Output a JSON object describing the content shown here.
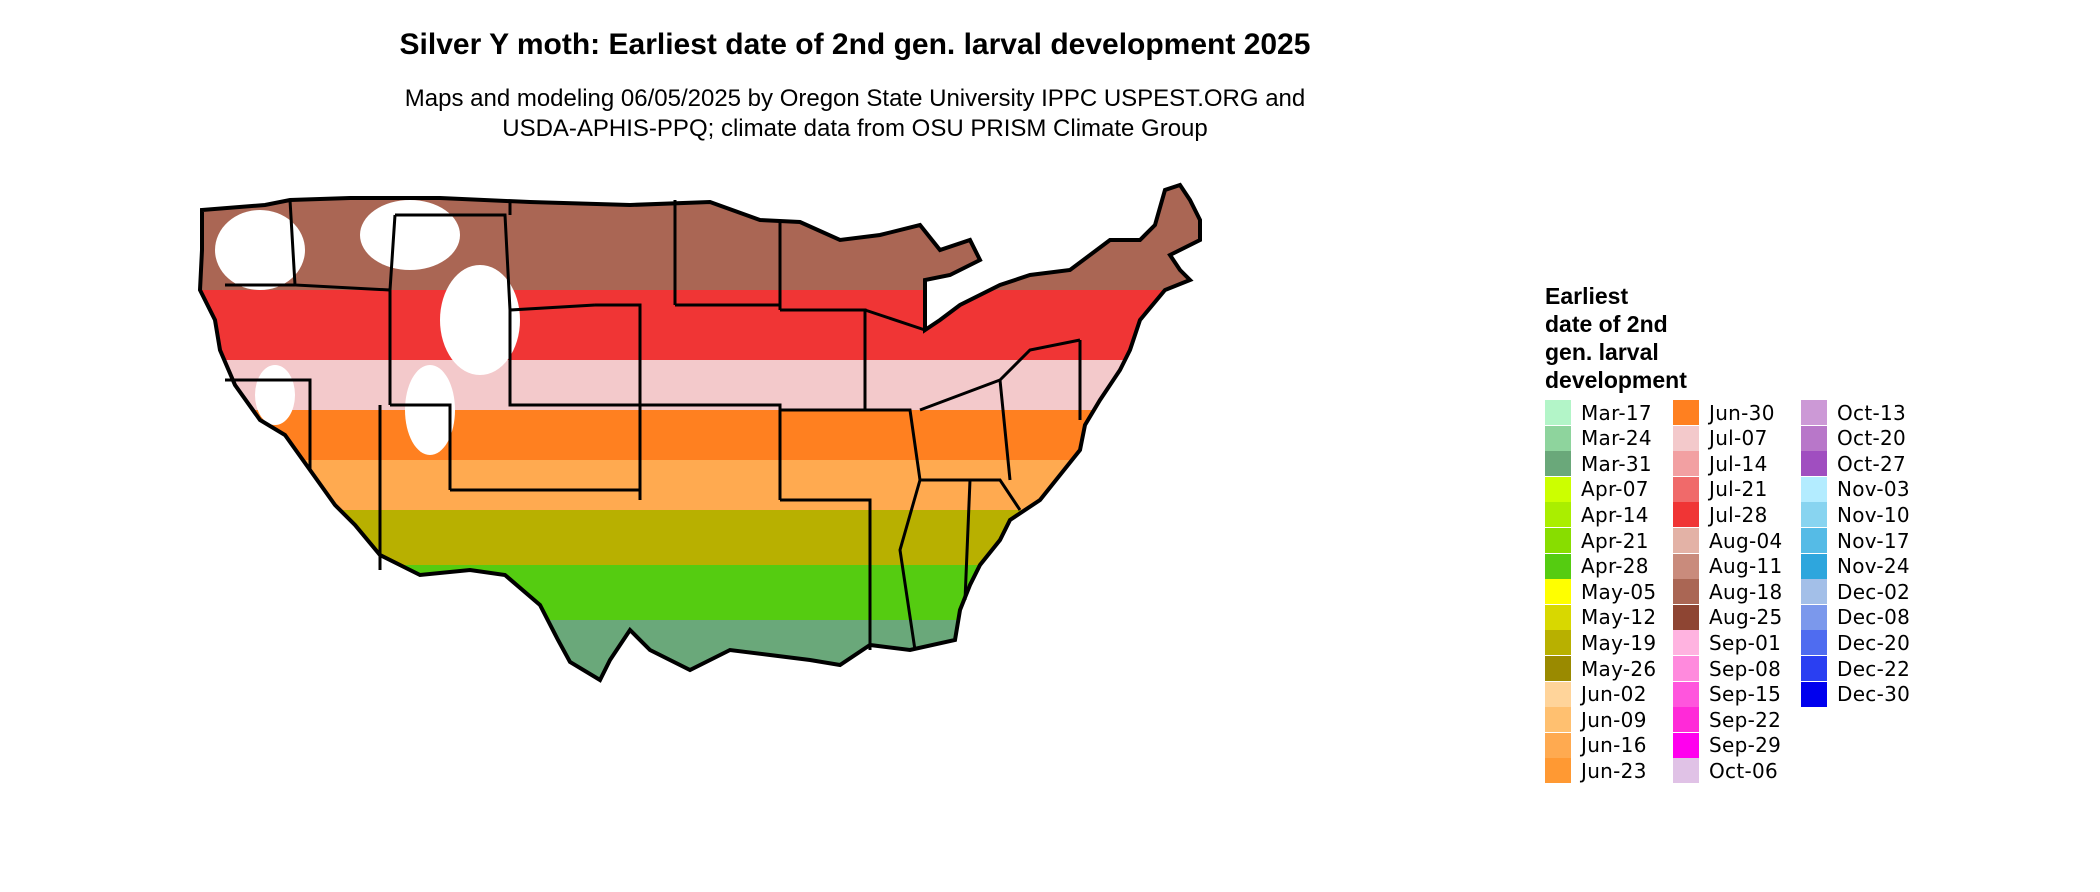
{
  "title": "Silver Y moth: Earliest date of 2nd gen. larval development 2025",
  "subtitle": "Maps and modeling 06/05/2025 by Oregon State University IPPC USPEST.ORG and\nUSDA-APHIS-PPQ; climate data from OSU PRISM Climate Group",
  "legend": {
    "title": "Earliest\ndate of 2nd\ngen. larval\ndevelopment",
    "items": [
      {
        "label": "Mar-17",
        "color": "#b3f5c8"
      },
      {
        "label": "Mar-24",
        "color": "#8ed49d"
      },
      {
        "label": "Mar-31",
        "color": "#6aa87a"
      },
      {
        "label": "Apr-07",
        "color": "#ccff00"
      },
      {
        "label": "Apr-14",
        "color": "#aaee00"
      },
      {
        "label": "Apr-21",
        "color": "#88dd00"
      },
      {
        "label": "Apr-28",
        "color": "#55cc11"
      },
      {
        "label": "May-05",
        "color": "#ffff00"
      },
      {
        "label": "May-12",
        "color": "#d8d800"
      },
      {
        "label": "May-19",
        "color": "#b8b000"
      },
      {
        "label": "May-26",
        "color": "#9a8a00"
      },
      {
        "label": "Jun-02",
        "color": "#ffd49a"
      },
      {
        "label": "Jun-09",
        "color": "#ffc070"
      },
      {
        "label": "Jun-16",
        "color": "#ffaa50"
      },
      {
        "label": "Jun-23",
        "color": "#ff9933"
      },
      {
        "label": "Jun-30",
        "color": "#ff8020"
      },
      {
        "label": "Jul-07",
        "color": "#f3c9cb"
      },
      {
        "label": "Jul-14",
        "color": "#f2a0a2"
      },
      {
        "label": "Jul-21",
        "color": "#f06a6a"
      },
      {
        "label": "Jul-28",
        "color": "#f03535"
      },
      {
        "label": "Aug-04",
        "color": "#e3b2a6"
      },
      {
        "label": "Aug-11",
        "color": "#c98b7c"
      },
      {
        "label": "Aug-18",
        "color": "#aa6654"
      },
      {
        "label": "Aug-25",
        "color": "#8e4533"
      },
      {
        "label": "Sep-01",
        "color": "#ffb3e0"
      },
      {
        "label": "Sep-08",
        "color": "#ff8add"
      },
      {
        "label": "Sep-15",
        "color": "#ff55dd"
      },
      {
        "label": "Sep-22",
        "color": "#ff2ad8"
      },
      {
        "label": "Sep-29",
        "color": "#ff00ee"
      },
      {
        "label": "Oct-06",
        "color": "#e0c2e6"
      },
      {
        "label": "Oct-13",
        "color": "#cc99d6"
      },
      {
        "label": "Oct-20",
        "color": "#b877c9"
      },
      {
        "label": "Oct-27",
        "color": "#a04ec0"
      },
      {
        "label": "Nov-03",
        "color": "#b3ecff"
      },
      {
        "label": "Nov-10",
        "color": "#88d4f0"
      },
      {
        "label": "Nov-17",
        "color": "#55bbe6"
      },
      {
        "label": "Nov-24",
        "color": "#2ea6dd"
      },
      {
        "label": "Dec-02",
        "color": "#a3bfe8"
      },
      {
        "label": "Dec-08",
        "color": "#7b98ec"
      },
      {
        "label": "Dec-20",
        "color": "#4f6cf0"
      },
      {
        "label": "Dec-22",
        "color": "#2a3ff2"
      },
      {
        "label": "Dec-30",
        "color": "#0000ee"
      }
    ]
  },
  "map": {
    "outline_color": "#000000",
    "no_data_color": "#ffffff",
    "bands": [
      {
        "label": "Aug-18",
        "color": "#aa6654"
      },
      {
        "label": "Jul-28",
        "color": "#f03535"
      },
      {
        "label": "Jul-07",
        "color": "#f3c9cb"
      },
      {
        "label": "Jun-30",
        "color": "#ff8020"
      },
      {
        "label": "Jun-16",
        "color": "#ffaa50"
      },
      {
        "label": "May-19",
        "color": "#b8b000"
      },
      {
        "label": "Apr-28",
        "color": "#55cc11"
      },
      {
        "label": "Mar-31",
        "color": "#6aa87a"
      }
    ]
  }
}
